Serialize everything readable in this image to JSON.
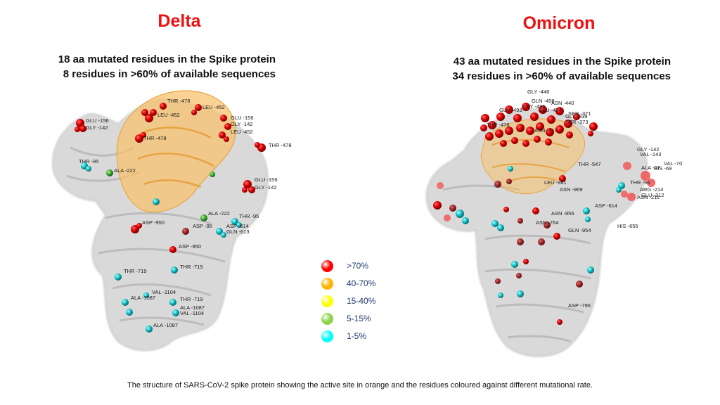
{
  "delta": {
    "title": "Delta",
    "subtitle_line1": "18 aa mutated residues in the Spike protein",
    "subtitle_line2": "8 residues in >60% of available sequences",
    "labels": [
      "THR -478",
      "LEU -452",
      "LEU -452",
      "GLU -156",
      "GLY -142",
      "GLU -156",
      "GLY -142",
      "THR -478",
      "LEU -452",
      "THR -478",
      "THR -95",
      "ALA -222",
      "GLU -156",
      "GLY -142",
      "ALA -222",
      "THR -95",
      "ASP -950",
      "ASP -95",
      "ASP -614",
      "GLN -613",
      "ASP -950",
      "THR -719",
      "THR -719",
      "VAL -1104",
      "ALA -1087",
      "THR -719",
      "ALA -1087",
      "VAL -1104",
      "ALA -1087"
    ]
  },
  "omicron": {
    "title": "Omicron",
    "subtitle_line1": "43 aa mutated residues in the Spike protein",
    "subtitle_line2": "34 residues in >60% of available sequences",
    "labels": [
      "GLY -446",
      "GLN -498",
      "GLY -496",
      "GLN -493",
      "ASN -440",
      "GLU -484",
      "SER -371",
      "GLY -339",
      "SER -373",
      "THR -478",
      "ASN -417",
      "GLY -142",
      "VAL -143",
      "VAL -70",
      "ALA -67",
      "HIS -69",
      "THR -547",
      "THR -95",
      "LEU -981",
      "ASN -969",
      "ARG -214",
      "GLU -212",
      "ASN -211",
      "ASP -614",
      "ASN -856",
      "ASN -764",
      "GLN -954",
      "HIS -655",
      "ASP -796"
    ]
  },
  "legend": [
    {
      "label": ">70%",
      "color": "#ff0000"
    },
    {
      "label": "40-70%",
      "color": "#ffb400"
    },
    {
      "label": "15-40%",
      "color": "#ffff00"
    },
    {
      "label": "5-15%",
      "color": "#8cd24a"
    },
    {
      "label": "1-5%",
      "color": "#00ffff"
    }
  ],
  "caption": "The structure of SARS-CoV-2 spike protein showing the active site in orange and the residues coloured against different mutational rate."
}
